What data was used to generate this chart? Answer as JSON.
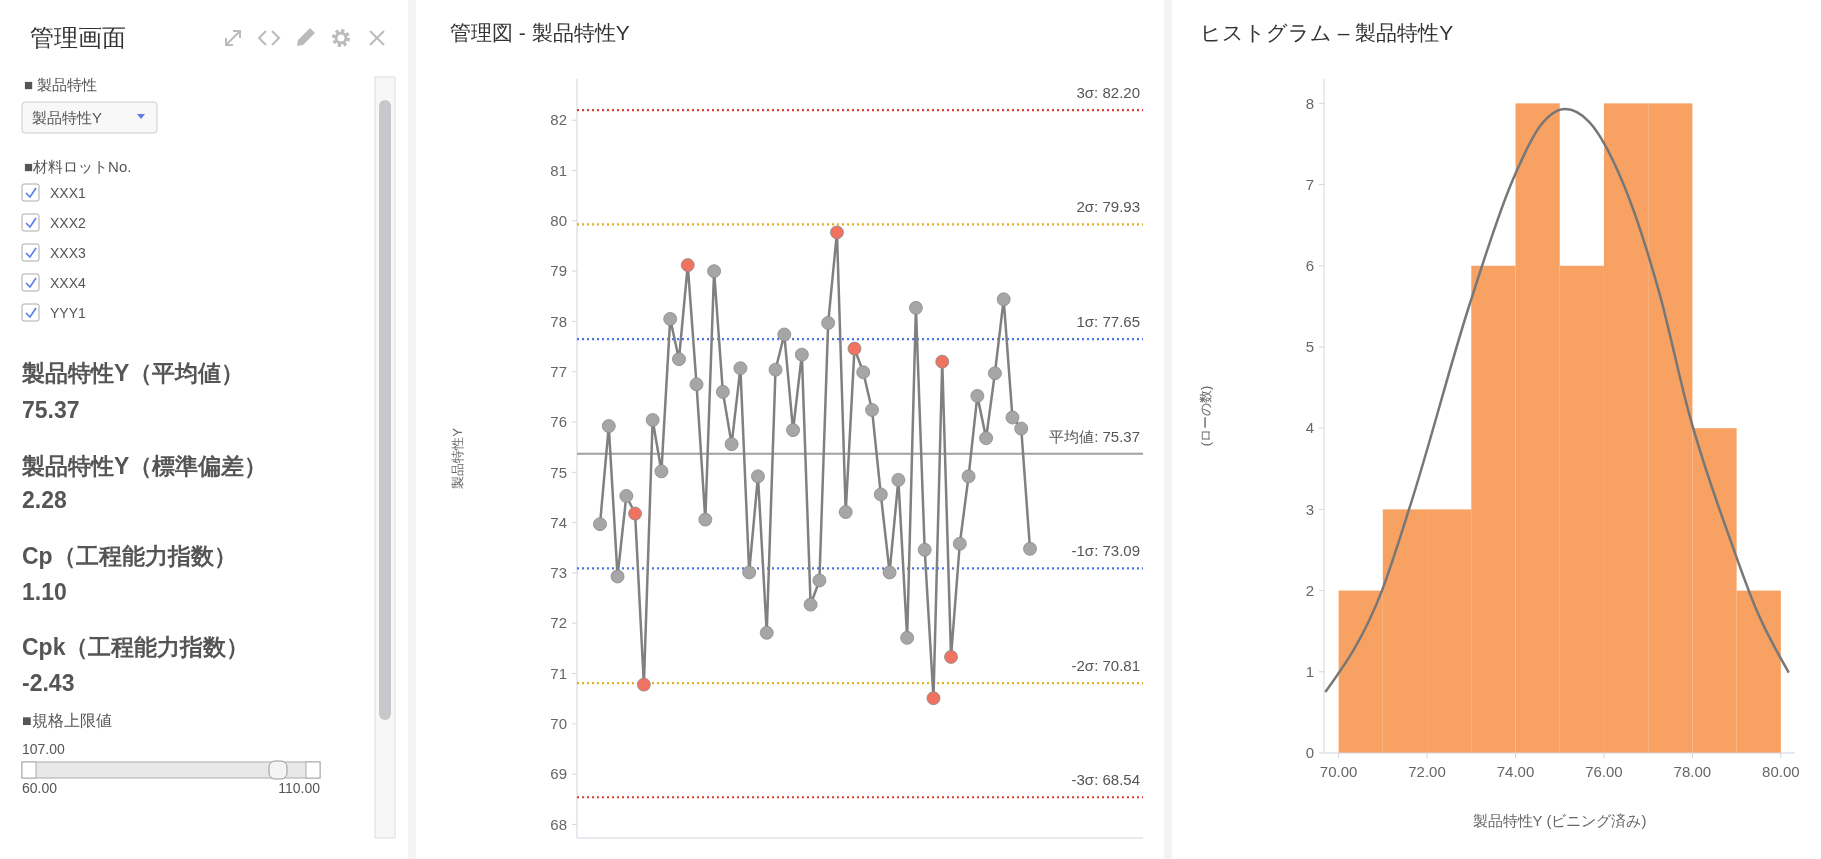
{
  "chart_data": [
    {
      "type": "other",
      "title": "管理画面",
      "annotations": [
        "■ 製品特性",
        "製品特性Y",
        "■材料ロットNo.",
        "XXX1",
        "XXX2",
        "XXX3",
        "XXX4",
        "YYY1",
        "製品特性Y（平均値）",
        "75.37",
        "製品特性Y（標準偏差）",
        "2.28",
        "Cp（工程能力指数）",
        "1.10",
        "Cpk（工程能力指数）",
        "-2.43",
        "■規格上限値",
        "107.00",
        "60.00",
        "110.00"
      ]
    },
    {
      "type": "line",
      "title": "管理図 - 製品特性Y",
      "ylabel": "製品特性Y",
      "categories": [
        null,
        null,
        null,
        null,
        null,
        null,
        null,
        null,
        null,
        null,
        null,
        null,
        null,
        null,
        null,
        null,
        null,
        null,
        null,
        null,
        null,
        null,
        null,
        null,
        null,
        null,
        null,
        null,
        null,
        null,
        null,
        null,
        null,
        null,
        null,
        null,
        null,
        null,
        null,
        null,
        null,
        null,
        null,
        null,
        null,
        null,
        null,
        null,
        null,
        null
      ],
      "series": [
        {
          "color": "#808080",
          "values": [
            73.97,
            75.92,
            72.93,
            74.53,
            74.18,
            70.78,
            76.04,
            75.02,
            78.05,
            77.25,
            79.12,
            76.75,
            74.06,
            79.0,
            76.6,
            75.56,
            77.07,
            73.01,
            74.92,
            71.81,
            77.04,
            77.74,
            75.84,
            77.34,
            72.37,
            72.85,
            77.97,
            79.77,
            74.21,
            77.46,
            76.99,
            76.24,
            74.56,
            73.01,
            74.85,
            71.71,
            78.27,
            73.46,
            70.51,
            77.2,
            71.33,
            73.58,
            74.92,
            76.52,
            75.68,
            76.97,
            78.44,
            76.09,
            75.87,
            73.48
          ],
          "colors": [
            "#a6a6a6",
            "#a6a6a6",
            "#a6a6a6",
            "#a6a6a6",
            "#f07361",
            "#f07361",
            "#a6a6a6",
            "#a6a6a6",
            "#a6a6a6",
            "#a6a6a6",
            "#f07361",
            "#a6a6a6",
            "#a6a6a6",
            "#a6a6a6",
            "#a6a6a6",
            "#a6a6a6",
            "#a6a6a6",
            "#a6a6a6",
            "#a6a6a6",
            "#a6a6a6",
            "#a6a6a6",
            "#a6a6a6",
            "#a6a6a6",
            "#a6a6a6",
            "#a6a6a6",
            "#a6a6a6",
            "#a6a6a6",
            "#f07361",
            "#a6a6a6",
            "#f07361",
            "#a6a6a6",
            "#a6a6a6",
            "#a6a6a6",
            "#a6a6a6",
            "#a6a6a6",
            "#a6a6a6",
            "#a6a6a6",
            "#a6a6a6",
            "#f07361",
            "#f07361",
            "#f07361",
            "#a6a6a6",
            "#a6a6a6",
            "#a6a6a6",
            "#a6a6a6",
            "#a6a6a6",
            "#a6a6a6",
            "#a6a6a6",
            "#a6a6a6",
            "#a6a6a6"
          ]
        }
      ],
      "marker": "circle",
      "ylim": [
        67.73,
        82.82
      ],
      "yticks": [
        68,
        69,
        70,
        71,
        72,
        73,
        74,
        75,
        76,
        77,
        78,
        79,
        80,
        81,
        82
      ],
      "tick_labels": "y",
      "ref_lines": [
        {
          "axis": "y",
          "value": 82.2,
          "label": "3σ: 82.20",
          "color": "#e03c31",
          "line_style": "dotted"
        },
        {
          "axis": "y",
          "value": 79.93,
          "label": "2σ: 79.93",
          "color": "#e0b020",
          "line_style": "dotted"
        },
        {
          "axis": "y",
          "value": 77.65,
          "label": "1σ: 77.65",
          "color": "#4a72e8",
          "line_style": "dotted"
        },
        {
          "axis": "y",
          "value": 75.37,
          "label": "平均値: 75.37",
          "color": "#a0a0a0",
          "line_style": "solid"
        },
        {
          "axis": "y",
          "value": 73.09,
          "label": "-1σ: 73.09",
          "color": "#4a72e8",
          "line_style": "dotted"
        },
        {
          "axis": "y",
          "value": 70.81,
          "label": "-2σ: 70.81",
          "color": "#e0b020",
          "line_style": "dotted"
        },
        {
          "axis": "y",
          "value": 68.54,
          "label": "-3σ: 68.54",
          "color": "#e03c31",
          "line_style": "dotted"
        }
      ]
    },
    {
      "type": "histogram",
      "title": "ヒストグラム – 製品特性Y",
      "xlabel": "製品特性Y (ビニング済み)",
      "ylabel": "(ローの数)",
      "color": "#f7a263",
      "bins": [
        70,
        71,
        72,
        73,
        74,
        75,
        76,
        77,
        78,
        79,
        80
      ],
      "values": [
        2,
        3,
        3,
        6,
        8,
        6,
        8,
        8,
        4,
        2
      ],
      "series": [
        {
          "type": "line",
          "color": "#777777",
          "x": [
            69.7,
            70.98,
            71.65,
            72.96,
            73.94,
            74.57,
            75.12,
            75.67,
            76.4,
            77.26,
            77.93,
            78.9,
            79.45,
            80.18
          ],
          "values": [
            0.75,
            2.0,
            3.1,
            5.52,
            7.06,
            7.73,
            7.93,
            7.77,
            7.06,
            5.65,
            4.17,
            2.56,
            1.76,
            0.99
          ]
        }
      ],
      "xlim": [
        69.67,
        80.32
      ],
      "xticks": [
        {
          "value": 70,
          "label": "70.00"
        },
        {
          "value": 72,
          "label": "72.00"
        },
        {
          "value": 74,
          "label": "74.00"
        },
        {
          "value": 76,
          "label": "76.00"
        },
        {
          "value": 78,
          "label": "78.00"
        },
        {
          "value": 80,
          "label": "80.00"
        }
      ],
      "ylim": [
        0,
        8.3
      ],
      "yticks": [
        0,
        1,
        2,
        3,
        4,
        5,
        6,
        7,
        8
      ]
    }
  ]
}
